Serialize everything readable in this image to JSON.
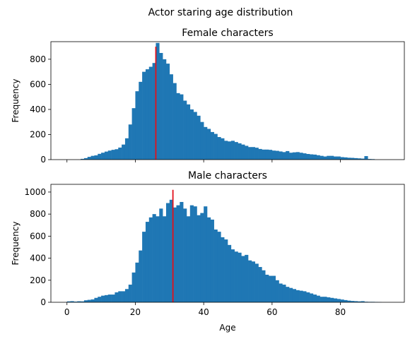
{
  "figure": {
    "suptitle": "Actor staring age distribution",
    "bar_color": "#1f77b4",
    "median_line_color": "#e3101a",
    "sharex": true
  },
  "chart_data": [
    {
      "type": "bar",
      "title": "Female characters",
      "xlabel": "",
      "ylabel": "Frequency",
      "xlim": [
        -4.7,
        98.7
      ],
      "ylim": [
        0,
        940
      ],
      "xticks": [
        0,
        20,
        40,
        60,
        80
      ],
      "yticks": [
        0,
        200,
        400,
        600,
        800
      ],
      "show_x_tick_labels": false,
      "bin_start": 4,
      "bin_width": 1,
      "counts": [
        6,
        12,
        22,
        30,
        34,
        46,
        55,
        64,
        72,
        78,
        83,
        96,
        120,
        170,
        280,
        410,
        545,
        620,
        700,
        720,
        740,
        770,
        930,
        850,
        800,
        765,
        680,
        610,
        530,
        520,
        470,
        440,
        400,
        380,
        350,
        300,
        260,
        245,
        220,
        205,
        180,
        170,
        150,
        145,
        150,
        140,
        130,
        120,
        110,
        100,
        100,
        95,
        85,
        80,
        80,
        78,
        72,
        70,
        65,
        60,
        68,
        55,
        58,
        60,
        55,
        50,
        45,
        42,
        40,
        35,
        30,
        25,
        30,
        30,
        25,
        25,
        20,
        18,
        15,
        14,
        12,
        10,
        8,
        28,
        5,
        4
      ],
      "median_marker": 26,
      "median_line_top": 900
    },
    {
      "type": "bar",
      "title": "Male characters",
      "xlabel": "Age",
      "ylabel": "Frequency",
      "xlim": [
        -4.7,
        98.7
      ],
      "ylim": [
        0,
        1070
      ],
      "xticks": [
        0,
        20,
        40,
        60,
        80
      ],
      "yticks": [
        0,
        200,
        400,
        600,
        800,
        1000
      ],
      "show_x_tick_labels": true,
      "bin_start": 0,
      "bin_width": 1,
      "counts": [
        8,
        10,
        6,
        9,
        8,
        18,
        22,
        26,
        40,
        50,
        60,
        65,
        70,
        70,
        90,
        100,
        100,
        120,
        160,
        270,
        360,
        470,
        640,
        730,
        770,
        800,
        780,
        850,
        780,
        900,
        930,
        860,
        880,
        910,
        850,
        780,
        880,
        870,
        790,
        810,
        870,
        770,
        750,
        660,
        640,
        590,
        570,
        520,
        480,
        460,
        450,
        420,
        430,
        380,
        370,
        350,
        320,
        290,
        250,
        240,
        240,
        200,
        170,
        160,
        140,
        130,
        120,
        110,
        105,
        100,
        90,
        80,
        70,
        60,
        50,
        50,
        45,
        40,
        35,
        30,
        25,
        20,
        15,
        12,
        10,
        8,
        10,
        5,
        4,
        4,
        3,
        2
      ],
      "median_marker": 31,
      "median_line_top": 1020
    }
  ]
}
